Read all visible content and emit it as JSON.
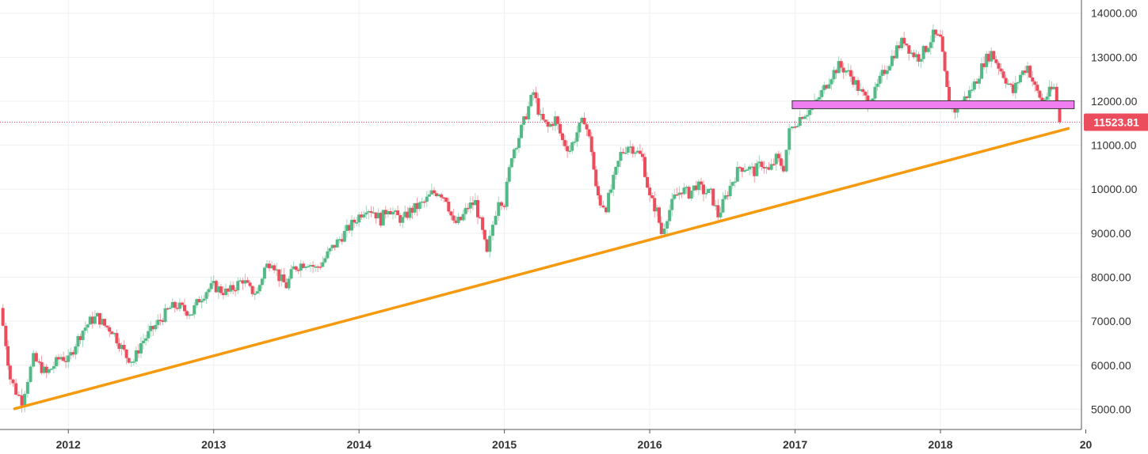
{
  "chart_data": {
    "type": "candlestick",
    "title": "",
    "xlabel": "",
    "ylabel": "",
    "x_ticks": [
      "2012",
      "2013",
      "2014",
      "2015",
      "2016",
      "2017",
      "2018",
      "20"
    ],
    "y_ticks": [
      "5000.00",
      "6000.00",
      "7000.00",
      "8000.00",
      "9000.00",
      "10000.00",
      "11000.00",
      "12000.00",
      "13000.00",
      "14000.00"
    ],
    "ylim": [
      4540,
      14300
    ],
    "xlim": [
      2011.53,
      2018.97
    ],
    "grid": true,
    "last_price": 11523.81,
    "last_price_label": "11523.81",
    "colors": {
      "up": "#53b987",
      "down": "#eb4d5c",
      "trendline": "#f59a0f",
      "zone_fill": "#f07ef0",
      "zone_border": "#333333",
      "grid": "#eef0f3"
    },
    "trendline": {
      "start": [
        2011.63,
        5010
      ],
      "end": [
        2018.88,
        11380
      ]
    },
    "resistance_zone": {
      "x_start": 2016.98,
      "x_end": 2018.92,
      "y_low": 11830,
      "y_high": 12010
    },
    "price_path": [
      [
        2011.53,
        7300
      ],
      [
        2011.57,
        6500
      ],
      [
        2011.6,
        5700
      ],
      [
        2011.64,
        5400
      ],
      [
        2011.68,
        5200
      ],
      [
        2011.72,
        5700
      ],
      [
        2011.76,
        6150
      ],
      [
        2011.8,
        6000
      ],
      [
        2011.85,
        5800
      ],
      [
        2011.9,
        6000
      ],
      [
        2011.95,
        6200
      ],
      [
        2012.0,
        6100
      ],
      [
        2012.05,
        6500
      ],
      [
        2012.1,
        6800
      ],
      [
        2012.15,
        7000
      ],
      [
        2012.2,
        7100
      ],
      [
        2012.25,
        6900
      ],
      [
        2012.3,
        6800
      ],
      [
        2012.35,
        6500
      ],
      [
        2012.4,
        6200
      ],
      [
        2012.45,
        6100
      ],
      [
        2012.5,
        6500
      ],
      [
        2012.55,
        6700
      ],
      [
        2012.6,
        6900
      ],
      [
        2012.65,
        7100
      ],
      [
        2012.7,
        7300
      ],
      [
        2012.75,
        7350
      ],
      [
        2012.8,
        7250
      ],
      [
        2012.85,
        7200
      ],
      [
        2012.9,
        7500
      ],
      [
        2012.95,
        7700
      ],
      [
        2013.0,
        7800
      ],
      [
        2013.05,
        7700
      ],
      [
        2013.1,
        7650
      ],
      [
        2013.15,
        7800
      ],
      [
        2013.2,
        7950
      ],
      [
        2013.25,
        7700
      ],
      [
        2013.3,
        7650
      ],
      [
        2013.35,
        8200
      ],
      [
        2013.4,
        8400
      ],
      [
        2013.45,
        8000
      ],
      [
        2013.5,
        7800
      ],
      [
        2013.55,
        8200
      ],
      [
        2013.6,
        8300
      ],
      [
        2013.65,
        8350
      ],
      [
        2013.7,
        8200
      ],
      [
        2013.75,
        8350
      ],
      [
        2013.8,
        8600
      ],
      [
        2013.85,
        8800
      ],
      [
        2013.9,
        9000
      ],
      [
        2013.95,
        9200
      ],
      [
        2014.0,
        9400
      ],
      [
        2014.05,
        9600
      ],
      [
        2014.1,
        9500
      ],
      [
        2014.15,
        9300
      ],
      [
        2014.2,
        9600
      ],
      [
        2014.25,
        9400
      ],
      [
        2014.3,
        9300
      ],
      [
        2014.35,
        9500
      ],
      [
        2014.4,
        9600
      ],
      [
        2014.45,
        9700
      ],
      [
        2014.5,
        9900
      ],
      [
        2014.55,
        9950
      ],
      [
        2014.6,
        9800
      ],
      [
        2014.65,
        9200
      ],
      [
        2014.7,
        9300
      ],
      [
        2014.75,
        9600
      ],
      [
        2014.8,
        9700
      ],
      [
        2014.85,
        9000
      ],
      [
        2014.88,
        8500
      ],
      [
        2014.92,
        9200
      ],
      [
        2014.96,
        9800
      ],
      [
        2015.0,
        9700
      ],
      [
        2015.05,
        10800
      ],
      [
        2015.1,
        11200
      ],
      [
        2015.15,
        11700
      ],
      [
        2015.2,
        12200
      ],
      [
        2015.25,
        11600
      ],
      [
        2015.3,
        11400
      ],
      [
        2015.35,
        11600
      ],
      [
        2015.4,
        11100
      ],
      [
        2015.45,
        10900
      ],
      [
        2015.5,
        11300
      ],
      [
        2015.55,
        11600
      ],
      [
        2015.6,
        10900
      ],
      [
        2015.63,
        10000
      ],
      [
        2015.66,
        9700
      ],
      [
        2015.7,
        9600
      ],
      [
        2015.75,
        10200
      ],
      [
        2015.8,
        10800
      ],
      [
        2015.85,
        11000
      ],
      [
        2015.9,
        10900
      ],
      [
        2015.95,
        10700
      ],
      [
        2016.0,
        9800
      ],
      [
        2016.05,
        9500
      ],
      [
        2016.08,
        9000
      ],
      [
        2016.12,
        9400
      ],
      [
        2016.17,
        9800
      ],
      [
        2016.22,
        10000
      ],
      [
        2016.27,
        9900
      ],
      [
        2016.32,
        10100
      ],
      [
        2016.37,
        9950
      ],
      [
        2016.42,
        9900
      ],
      [
        2016.47,
        9400
      ],
      [
        2016.52,
        9800
      ],
      [
        2016.57,
        10200
      ],
      [
        2016.62,
        10500
      ],
      [
        2016.67,
        10500
      ],
      [
        2016.72,
        10400
      ],
      [
        2016.77,
        10600
      ],
      [
        2016.82,
        10400
      ],
      [
        2016.87,
        10700
      ],
      [
        2016.92,
        10500
      ],
      [
        2016.96,
        11300
      ],
      [
        2017.0,
        11500
      ],
      [
        2017.05,
        11700
      ],
      [
        2017.1,
        11800
      ],
      [
        2017.15,
        12000
      ],
      [
        2017.2,
        12300
      ],
      [
        2017.25,
        12600
      ],
      [
        2017.3,
        12800
      ],
      [
        2017.35,
        12700
      ],
      [
        2017.4,
        12500
      ],
      [
        2017.45,
        12200
      ],
      [
        2017.5,
        12000
      ],
      [
        2017.55,
        12200
      ],
      [
        2017.6,
        12600
      ],
      [
        2017.65,
        12900
      ],
      [
        2017.7,
        13200
      ],
      [
        2017.75,
        13400
      ],
      [
        2017.8,
        13100
      ],
      [
        2017.85,
        13000
      ],
      [
        2017.9,
        13200
      ],
      [
        2017.95,
        13500
      ],
      [
        2018.0,
        13400
      ],
      [
        2018.03,
        12600
      ],
      [
        2018.06,
        11900
      ],
      [
        2018.1,
        11800
      ],
      [
        2018.15,
        12000
      ],
      [
        2018.2,
        12200
      ],
      [
        2018.25,
        12500
      ],
      [
        2018.3,
        12900
      ],
      [
        2018.35,
        13100
      ],
      [
        2018.4,
        12800
      ],
      [
        2018.45,
        12500
      ],
      [
        2018.5,
        12200
      ],
      [
        2018.55,
        12600
      ],
      [
        2018.6,
        12800
      ],
      [
        2018.65,
        12300
      ],
      [
        2018.7,
        12000
      ],
      [
        2018.75,
        12200
      ],
      [
        2018.78,
        12300
      ],
      [
        2018.82,
        11523.81
      ]
    ]
  }
}
